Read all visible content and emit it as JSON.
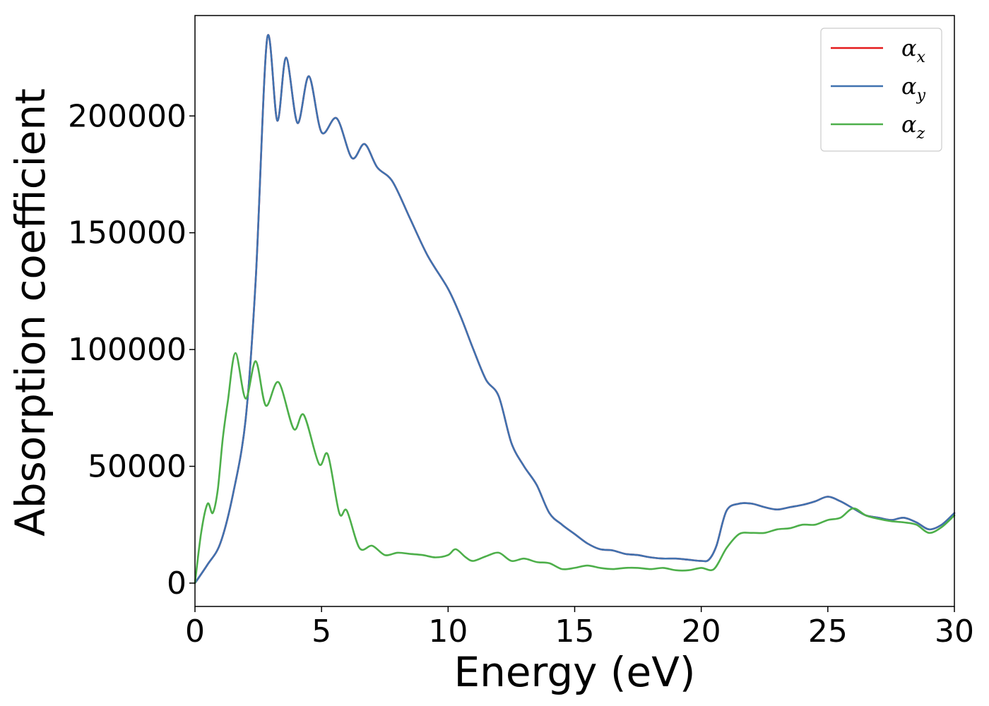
{
  "chart_data": {
    "type": "line",
    "title": "",
    "xlabel": "Energy (eV)",
    "ylabel": "Absorption coefficient",
    "xlim": [
      0,
      30
    ],
    "ylim": [
      -10000,
      243000
    ],
    "xticks": [
      0,
      5,
      10,
      15,
      20,
      25,
      30
    ],
    "xtick_labels": [
      "0",
      "5",
      "10",
      "15",
      "20",
      "25",
      "30"
    ],
    "yticks": [
      0,
      50000,
      100000,
      150000,
      200000
    ],
    "ytick_labels": [
      "0",
      "50000",
      "100000",
      "150000",
      "200000"
    ],
    "grid": false,
    "legend": {
      "location": "top-right"
    },
    "series": [
      {
        "name": "α_x",
        "symbol": "α",
        "subscript": "x",
        "color": "#e41a1c",
        "x": [
          0,
          0.5,
          1.0,
          1.5,
          2.0,
          2.4,
          2.85,
          3.25,
          3.6,
          4.05,
          4.5,
          5.0,
          5.6,
          6.2,
          6.7,
          7.2,
          7.8,
          8.5,
          9.2,
          10.0,
          10.5,
          11.0,
          11.5,
          12.0,
          12.5,
          13.0,
          13.5,
          14.0,
          14.5,
          15.0,
          15.5,
          16.0,
          16.5,
          17.0,
          17.5,
          18.0,
          18.5,
          19.0,
          19.5,
          20.0,
          20.3,
          20.6,
          21.0,
          21.5,
          22.0,
          22.5,
          23.0,
          23.5,
          24.0,
          24.5,
          25.0,
          25.5,
          26.0,
          26.5,
          27.0,
          27.5,
          28.0,
          28.5,
          29.0,
          29.5,
          30.0
        ],
        "values": [
          0,
          8000,
          17000,
          38000,
          70000,
          130000,
          233000,
          198000,
          225000,
          197000,
          217000,
          193000,
          199000,
          182000,
          188000,
          178000,
          172000,
          156000,
          140000,
          126000,
          114000,
          100000,
          87000,
          80000,
          60000,
          50000,
          42000,
          30000,
          25000,
          21000,
          17000,
          14500,
          14000,
          12500,
          12000,
          11000,
          10500,
          10500,
          10000,
          9500,
          10000,
          16000,
          31000,
          34000,
          34000,
          32500,
          31500,
          32500,
          33500,
          35000,
          37000,
          35000,
          32000,
          29000,
          28000,
          27000,
          28000,
          26000,
          23000,
          25000,
          30000
        ]
      },
      {
        "name": "α_y",
        "symbol": "α",
        "subscript": "y",
        "color": "#3f72b0",
        "x": [
          0,
          0.5,
          1.0,
          1.5,
          2.0,
          2.4,
          2.85,
          3.25,
          3.6,
          4.05,
          4.5,
          5.0,
          5.6,
          6.2,
          6.7,
          7.2,
          7.8,
          8.5,
          9.2,
          10.0,
          10.5,
          11.0,
          11.5,
          12.0,
          12.5,
          13.0,
          13.5,
          14.0,
          14.5,
          15.0,
          15.5,
          16.0,
          16.5,
          17.0,
          17.5,
          18.0,
          18.5,
          19.0,
          19.5,
          20.0,
          20.3,
          20.6,
          21.0,
          21.5,
          22.0,
          22.5,
          23.0,
          23.5,
          24.0,
          24.5,
          25.0,
          25.5,
          26.0,
          26.5,
          27.0,
          27.5,
          28.0,
          28.5,
          29.0,
          29.5,
          30.0
        ],
        "values": [
          0,
          8000,
          17000,
          38000,
          70000,
          130000,
          233000,
          198000,
          225000,
          197000,
          217000,
          193000,
          199000,
          182000,
          188000,
          178000,
          172000,
          156000,
          140000,
          126000,
          114000,
          100000,
          87000,
          80000,
          60000,
          50000,
          42000,
          30000,
          25000,
          21000,
          17000,
          14500,
          14000,
          12500,
          12000,
          11000,
          10500,
          10500,
          10000,
          9500,
          10000,
          16000,
          31000,
          34000,
          34000,
          32500,
          31500,
          32500,
          33500,
          35000,
          37000,
          35000,
          32000,
          29000,
          28000,
          27000,
          28000,
          26000,
          23000,
          25000,
          30000
        ]
      },
      {
        "name": "α_z",
        "symbol": "α",
        "subscript": "z",
        "color": "#4daf4a",
        "x": [
          0,
          0.25,
          0.5,
          0.7,
          0.9,
          1.1,
          1.3,
          1.6,
          2.0,
          2.4,
          2.8,
          3.3,
          3.9,
          4.3,
          4.9,
          5.25,
          5.7,
          6.0,
          6.5,
          7.0,
          7.5,
          8.0,
          8.5,
          9.0,
          9.5,
          10.0,
          10.3,
          10.7,
          11.0,
          11.5,
          12.0,
          12.5,
          13.0,
          13.5,
          14.0,
          14.5,
          15.0,
          15.5,
          16.0,
          16.5,
          17.0,
          17.5,
          18.0,
          18.5,
          19.0,
          19.5,
          20.0,
          20.5,
          21.0,
          21.5,
          22.0,
          22.5,
          23.0,
          23.5,
          24.0,
          24.5,
          25.0,
          25.5,
          26.0,
          26.5,
          27.0,
          27.5,
          28.0,
          28.5,
          29.0,
          29.5,
          30.0
        ],
        "values": [
          0,
          22000,
          34000,
          30000,
          40000,
          62000,
          78000,
          98500,
          79000,
          95000,
          76000,
          86000,
          66000,
          72000,
          51000,
          55000,
          30000,
          31000,
          15000,
          16000,
          12000,
          13000,
          12500,
          12000,
          11000,
          12000,
          14500,
          11000,
          9500,
          11500,
          13000,
          9500,
          10500,
          9000,
          8500,
          6000,
          6500,
          7500,
          6500,
          6000,
          6500,
          6500,
          6000,
          6500,
          5500,
          5500,
          6500,
          6000,
          15000,
          21000,
          21500,
          21500,
          23000,
          23500,
          25000,
          25000,
          27000,
          28000,
          32000,
          29000,
          27500,
          26500,
          26000,
          25000,
          21500,
          24000,
          29000
        ]
      }
    ]
  }
}
